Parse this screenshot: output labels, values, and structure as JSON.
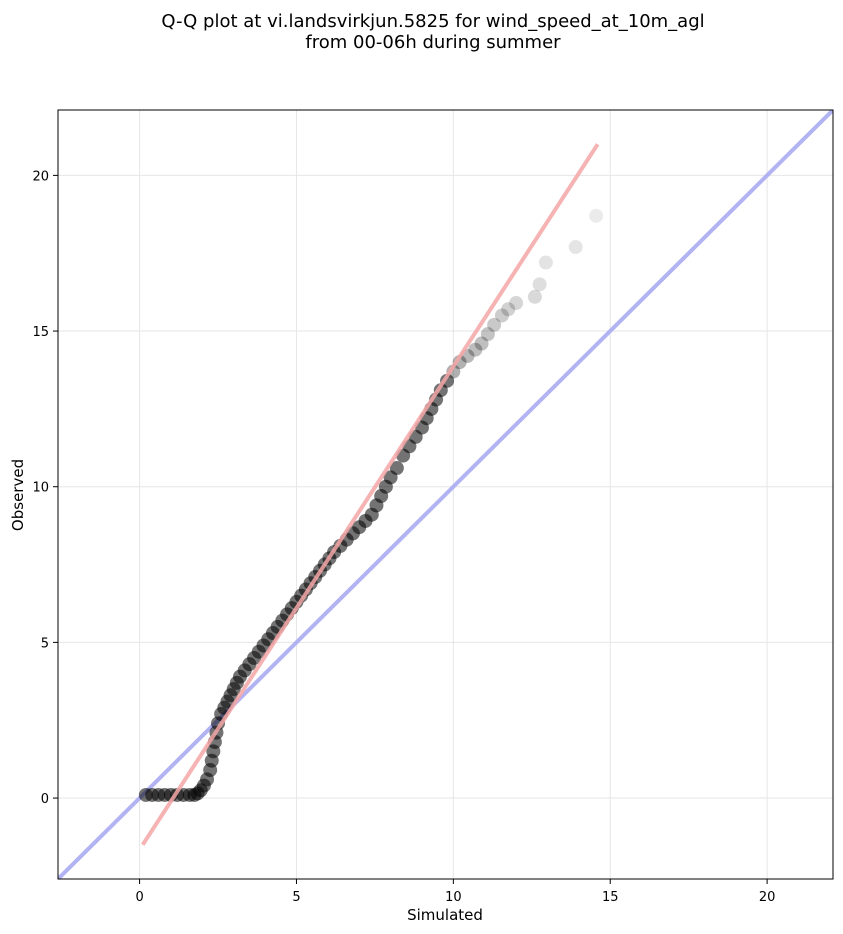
{
  "chart_data": {
    "type": "scatter",
    "title": "Q-Q plot at vi.landsvirkjun.5825 for wind_speed_at_10m_agl\nfrom 00-06h during summer",
    "xlabel": "Simulated",
    "ylabel": "Observed",
    "xlim": [
      -2.6,
      22.1
    ],
    "ylim": [
      -2.6,
      22.1
    ],
    "xticks": [
      0,
      5,
      10,
      15,
      20
    ],
    "yticks": [
      0,
      5,
      10,
      15,
      20
    ],
    "grid": true,
    "legend": "none",
    "point_color": "#000000",
    "fit_line": {
      "color": "#f4a6a6",
      "x": [
        0.1,
        14.6
      ],
      "y": [
        -1.5,
        21.0
      ]
    },
    "identity_line": {
      "color": "#a9abf2",
      "x": [
        -2.6,
        22.1
      ],
      "y": [
        -2.6,
        22.1
      ]
    },
    "points": [
      [
        0.2,
        0.1
      ],
      [
        0.4,
        0.1
      ],
      [
        0.6,
        0.1
      ],
      [
        0.8,
        0.1
      ],
      [
        1.0,
        0.1
      ],
      [
        1.2,
        0.1
      ],
      [
        1.4,
        0.1
      ],
      [
        1.6,
        0.1
      ],
      [
        1.75,
        0.1
      ],
      [
        1.85,
        0.15
      ],
      [
        1.95,
        0.25
      ],
      [
        2.05,
        0.4
      ],
      [
        2.15,
        0.6
      ],
      [
        2.25,
        0.9
      ],
      [
        2.3,
        1.2
      ],
      [
        2.35,
        1.5
      ],
      [
        2.4,
        1.8
      ],
      [
        2.45,
        2.1
      ],
      [
        2.5,
        2.4
      ],
      [
        2.6,
        2.7
      ],
      [
        2.7,
        2.9
      ],
      [
        2.8,
        3.1
      ],
      [
        2.9,
        3.3
      ],
      [
        3.0,
        3.5
      ],
      [
        3.1,
        3.7
      ],
      [
        3.2,
        3.9
      ],
      [
        3.35,
        4.1
      ],
      [
        3.5,
        4.3
      ],
      [
        3.65,
        4.5
      ],
      [
        3.8,
        4.7
      ],
      [
        3.95,
        4.9
      ],
      [
        4.1,
        5.1
      ],
      [
        4.25,
        5.3
      ],
      [
        4.4,
        5.5
      ],
      [
        4.55,
        5.7
      ],
      [
        4.7,
        5.9
      ],
      [
        4.85,
        6.1
      ],
      [
        5.0,
        6.3
      ],
      [
        5.15,
        6.5
      ],
      [
        5.3,
        6.7
      ],
      [
        5.45,
        6.9
      ],
      [
        5.6,
        7.1
      ],
      [
        5.75,
        7.3
      ],
      [
        5.9,
        7.5
      ],
      [
        6.05,
        7.7
      ],
      [
        6.2,
        7.9
      ],
      [
        6.4,
        8.1
      ],
      [
        6.6,
        8.3
      ],
      [
        6.8,
        8.5
      ],
      [
        7.0,
        8.7
      ],
      [
        7.2,
        8.9
      ],
      [
        7.4,
        9.1
      ],
      [
        7.55,
        9.4
      ],
      [
        7.7,
        9.7
      ],
      [
        7.85,
        10.0
      ],
      [
        8.0,
        10.3
      ],
      [
        8.2,
        10.6
      ],
      [
        8.4,
        11.0
      ],
      [
        8.6,
        11.3
      ],
      [
        8.8,
        11.6
      ],
      [
        9.0,
        11.9
      ],
      [
        9.15,
        12.2
      ],
      [
        9.3,
        12.5
      ],
      [
        9.45,
        12.8
      ],
      [
        9.6,
        13.1
      ],
      [
        9.8,
        13.4
      ],
      [
        10.0,
        13.7
      ],
      [
        10.2,
        14.0
      ],
      [
        10.45,
        14.2
      ],
      [
        10.7,
        14.4
      ],
      [
        10.9,
        14.6
      ],
      [
        11.1,
        14.9
      ],
      [
        11.3,
        15.2
      ],
      [
        11.55,
        15.5
      ],
      [
        11.75,
        15.7
      ],
      [
        12.0,
        15.9
      ],
      [
        12.6,
        16.1
      ],
      [
        12.75,
        16.5
      ],
      [
        12.95,
        17.2
      ],
      [
        13.9,
        17.7
      ],
      [
        14.55,
        18.7
      ]
    ]
  }
}
